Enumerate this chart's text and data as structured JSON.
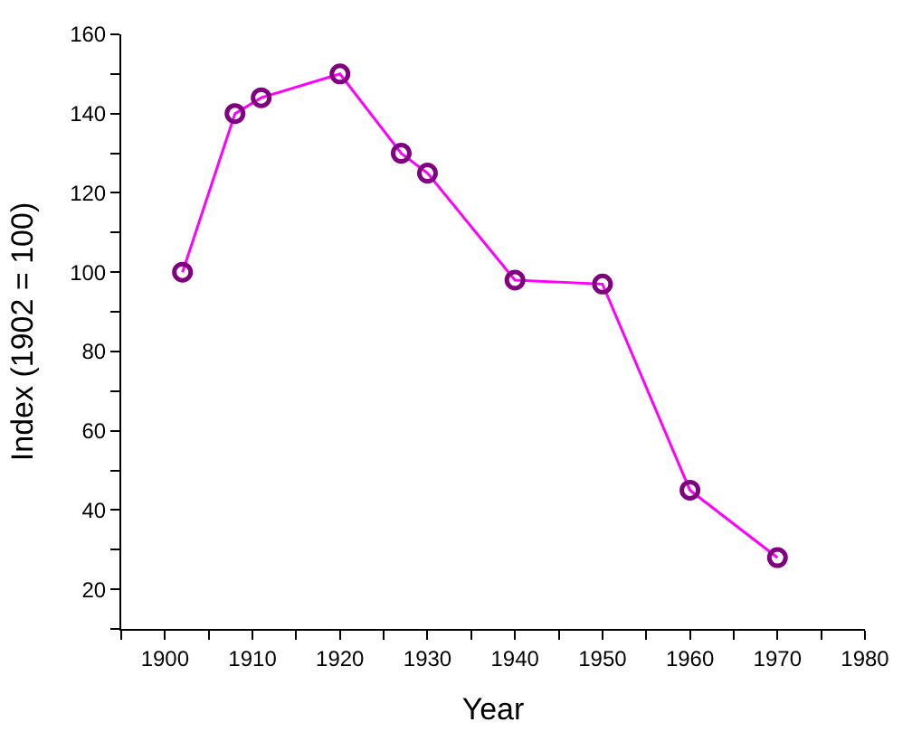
{
  "chart_data": {
    "type": "line",
    "xlabel": "Year",
    "ylabel": "Index (1902 = 100)",
    "x": [
      1902,
      1908,
      1911,
      1920,
      1927,
      1930,
      1940,
      1950,
      1960,
      1970
    ],
    "series": [
      {
        "color": "#ff00ff",
        "colors": [
          "#800080",
          "#800080",
          "#800080",
          "#800080",
          "#800080",
          "#800080",
          "#800080",
          "#800080",
          "#800080",
          "#800080"
        ],
        "values": [
          100,
          140,
          144,
          150,
          130,
          125,
          98,
          97,
          45,
          28
        ]
      }
    ],
    "xlim": [
      1895,
      1980
    ],
    "xticks": [
      {
        "value": 1895,
        "label": null
      },
      1900,
      {
        "value": 1905,
        "label": null
      },
      1910,
      {
        "value": 1915,
        "label": null
      },
      1920,
      {
        "value": 1925,
        "label": null
      },
      1930,
      {
        "value": 1935,
        "label": null
      },
      1940,
      {
        "value": 1945,
        "label": null
      },
      1950,
      {
        "value": 1955,
        "label": null
      },
      1960,
      {
        "value": 1965,
        "label": null
      },
      1970,
      {
        "value": 1975,
        "label": null
      },
      1980
    ],
    "ylim": [
      10,
      160
    ],
    "yticks": [
      {
        "value": 10,
        "label": null
      },
      20,
      {
        "value": 30,
        "label": null
      },
      40,
      {
        "value": 50,
        "label": null
      },
      60,
      {
        "value": 70,
        "label": null
      },
      80,
      {
        "value": 90,
        "label": null
      },
      100,
      {
        "value": 110,
        "label": null
      },
      120,
      {
        "value": 130,
        "label": null
      },
      140,
      {
        "value": 150,
        "label": null
      },
      160
    ],
    "marker": "circle",
    "line_style": "solid"
  }
}
